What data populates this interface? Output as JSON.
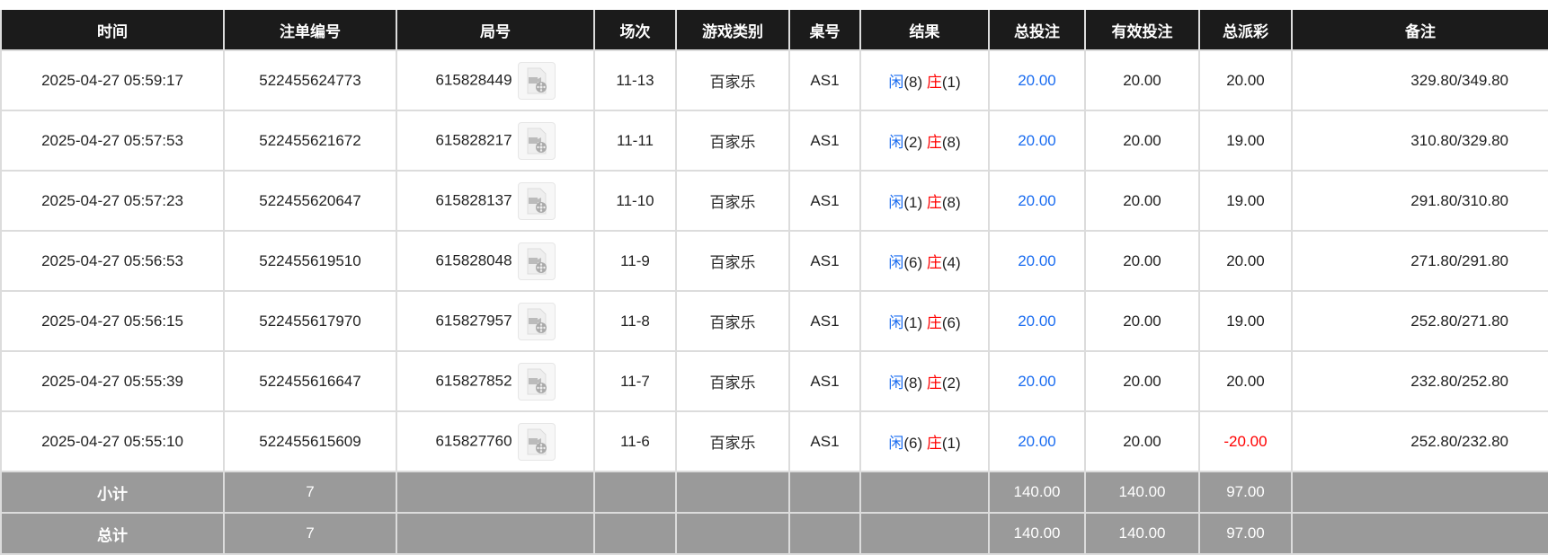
{
  "headers": [
    "时间",
    "注单编号",
    "局号",
    "场次",
    "游戏类别",
    "桌号",
    "结果",
    "总投注",
    "有效投注",
    "总派彩",
    "备注"
  ],
  "rows": [
    {
      "time": "2025-04-27 05:59:17",
      "bet_id": "522455624773",
      "round": "615828449",
      "shoe": "11-13",
      "game": "百家乐",
      "table": "AS1",
      "player_label": "闲",
      "player": "(8)",
      "banker_label": "庄",
      "banker": "(1)",
      "total_bet": "20.00",
      "valid_bet": "20.00",
      "payout": "20.00",
      "payout_negative": false,
      "note": "329.80/349.80"
    },
    {
      "time": "2025-04-27 05:57:53",
      "bet_id": "522455621672",
      "round": "615828217",
      "shoe": "11-11",
      "game": "百家乐",
      "table": "AS1",
      "player_label": "闲",
      "player": "(2)",
      "banker_label": "庄",
      "banker": "(8)",
      "total_bet": "20.00",
      "valid_bet": "20.00",
      "payout": "19.00",
      "payout_negative": false,
      "note": "310.80/329.80"
    },
    {
      "time": "2025-04-27 05:57:23",
      "bet_id": "522455620647",
      "round": "615828137",
      "shoe": "11-10",
      "game": "百家乐",
      "table": "AS1",
      "player_label": "闲",
      "player": "(1)",
      "banker_label": "庄",
      "banker": "(8)",
      "total_bet": "20.00",
      "valid_bet": "20.00",
      "payout": "19.00",
      "payout_negative": false,
      "note": "291.80/310.80"
    },
    {
      "time": "2025-04-27 05:56:53",
      "bet_id": "522455619510",
      "round": "615828048",
      "shoe": "11-9",
      "game": "百家乐",
      "table": "AS1",
      "player_label": "闲",
      "player": "(6)",
      "banker_label": "庄",
      "banker": "(4)",
      "total_bet": "20.00",
      "valid_bet": "20.00",
      "payout": "20.00",
      "payout_negative": false,
      "note": "271.80/291.80"
    },
    {
      "time": "2025-04-27 05:56:15",
      "bet_id": "522455617970",
      "round": "615827957",
      "shoe": "11-8",
      "game": "百家乐",
      "table": "AS1",
      "player_label": "闲",
      "player": "(1)",
      "banker_label": "庄",
      "banker": "(6)",
      "total_bet": "20.00",
      "valid_bet": "20.00",
      "payout": "19.00",
      "payout_negative": false,
      "note": "252.80/271.80"
    },
    {
      "time": "2025-04-27 05:55:39",
      "bet_id": "522455616647",
      "round": "615827852",
      "shoe": "11-7",
      "game": "百家乐",
      "table": "AS1",
      "player_label": "闲",
      "player": "(8)",
      "banker_label": "庄",
      "banker": "(2)",
      "total_bet": "20.00",
      "valid_bet": "20.00",
      "payout": "20.00",
      "payout_negative": false,
      "note": "232.80/252.80"
    },
    {
      "time": "2025-04-27 05:55:10",
      "bet_id": "522455615609",
      "round": "615827760",
      "shoe": "11-6",
      "game": "百家乐",
      "table": "AS1",
      "player_label": "闲",
      "player": "(6)",
      "banker_label": "庄",
      "banker": "(1)",
      "total_bet": "20.00",
      "valid_bet": "20.00",
      "payout": "-20.00",
      "payout_negative": true,
      "note": "252.80/232.80"
    }
  ],
  "summary": [
    {
      "label": "小计",
      "count": "7",
      "total_bet": "140.00",
      "valid_bet": "140.00",
      "payout": "97.00"
    },
    {
      "label": "总计",
      "count": "7",
      "total_bet": "140.00",
      "valid_bet": "140.00",
      "payout": "97.00"
    }
  ],
  "colors": {
    "header_bg": "#1b1b1b",
    "summary_bg": "#9a9a9a",
    "player": "#1a6cf0",
    "banker": "#ff0000",
    "negative": "#ff0000"
  },
  "icons": {
    "replay": "video-replay-icon"
  }
}
